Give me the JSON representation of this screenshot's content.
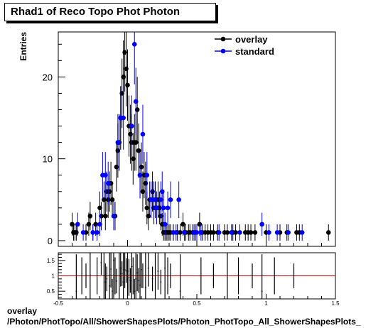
{
  "title": "Rhad1 of Reco Topo Phot Photon",
  "footer": {
    "line1": "overlay",
    "line2": "/Photon/PhotTopo/All/ShowerShapesPlots/Photon_PhotTopo_All_ShowerShapesPlots_"
  },
  "colors": {
    "overlay": "#000000",
    "standard": "#0000ff",
    "ratio_line": "#cc0000"
  },
  "chart_data": [
    {
      "type": "scatter",
      "ylabel": "Entries",
      "xlim": [
        -0.5,
        1.5
      ],
      "ylim": [
        -0.7,
        25.5
      ],
      "yticks": [
        0,
        10,
        20
      ],
      "legend_position": "top-right",
      "series": [
        {
          "name": "overlay",
          "x": [
            -0.4,
            -0.39,
            -0.38,
            -0.37,
            -0.3,
            -0.28,
            -0.27,
            -0.25,
            -0.23,
            -0.2,
            -0.19,
            -0.17,
            -0.16,
            -0.15,
            -0.14,
            -0.13,
            -0.12,
            -0.11,
            -0.09,
            -0.08,
            -0.07,
            -0.06,
            -0.05,
            -0.04,
            -0.03,
            -0.02,
            -0.01,
            0.0,
            0.01,
            0.02,
            0.03,
            0.04,
            0.05,
            0.06,
            0.07,
            0.08,
            0.09,
            0.1,
            0.11,
            0.12,
            0.13,
            0.14,
            0.15,
            0.16,
            0.18,
            0.19,
            0.2,
            0.21,
            0.22,
            0.23,
            0.24,
            0.25,
            0.26,
            0.27,
            0.28,
            0.29,
            0.3,
            0.31,
            0.33,
            0.36,
            0.38,
            0.4,
            0.42,
            0.44,
            0.45,
            0.47,
            0.49,
            0.52,
            0.54,
            0.56,
            0.58,
            0.6,
            0.62,
            0.65,
            0.7,
            0.72,
            0.76,
            0.78,
            0.85,
            0.87,
            0.89,
            0.92,
            1.0,
            1.1,
            1.15,
            1.22,
            1.24,
            1.45
          ],
          "y": [
            2,
            1,
            1,
            1,
            1,
            2,
            3,
            1,
            2,
            4,
            3,
            5,
            3,
            6,
            5,
            6,
            7,
            5,
            3,
            9,
            11,
            12,
            15,
            18,
            20,
            23,
            21,
            19,
            14,
            13,
            12,
            10,
            12,
            12,
            16,
            11,
            8,
            9,
            6,
            8,
            7,
            4,
            3,
            5,
            6,
            4,
            5,
            4,
            5,
            4,
            3,
            2,
            1,
            1,
            1,
            1,
            1,
            1,
            1,
            1,
            1,
            2,
            1,
            1,
            1,
            1,
            1,
            2,
            1,
            1,
            1,
            1,
            1,
            1,
            1,
            1,
            1,
            1,
            1,
            1,
            1,
            1,
            1,
            1,
            1,
            1,
            1,
            1
          ]
        },
        {
          "name": "standard",
          "x": [
            -0.36,
            -0.32,
            -0.25,
            -0.22,
            -0.2,
            -0.18,
            -0.16,
            -0.14,
            -0.1,
            -0.07,
            -0.05,
            -0.03,
            0.03,
            0.05,
            0.06,
            0.09,
            0.11,
            0.14,
            0.17,
            0.19,
            0.21,
            0.24,
            0.25,
            0.26,
            0.27,
            0.29,
            0.31,
            0.33,
            0.35,
            0.37,
            0.41,
            0.48,
            0.5,
            0.53,
            0.66,
            0.75,
            0.81,
            0.97,
            1.02,
            1.08,
            1.16,
            1.26
          ],
          "y": [
            2,
            1,
            1,
            1,
            2,
            8,
            8,
            7,
            3,
            12,
            15,
            15,
            14,
            24,
            17,
            8,
            13,
            8,
            5,
            5,
            4,
            5,
            6,
            4,
            2,
            4,
            5,
            1,
            1,
            5,
            1,
            1,
            1,
            1,
            1,
            1,
            1,
            2,
            1,
            1,
            1,
            1
          ]
        }
      ]
    },
    {
      "type": "scatter",
      "xlim": [
        -0.5,
        1.5
      ],
      "ylim": [
        0.25,
        1.75
      ],
      "xticks": [
        -0.5,
        0,
        0.5,
        1,
        1.5
      ],
      "xtick_labels": [
        "-0.5",
        "0",
        "0.5",
        "1",
        "1.5"
      ],
      "yticks": [
        0.5,
        1,
        1.5
      ],
      "reference_line": 1,
      "series": [
        {
          "name": "",
          "x": [
            -0.37,
            -0.33,
            -0.3,
            -0.27,
            -0.22,
            -0.19,
            -0.17,
            -0.16,
            -0.15,
            -0.13,
            -0.12,
            -0.11,
            -0.1,
            -0.09,
            -0.08,
            -0.06,
            -0.05,
            -0.04,
            -0.03,
            -0.02,
            -0.01,
            0.0,
            0.01,
            0.02,
            0.03,
            0.04,
            0.05,
            0.06,
            0.07,
            0.08,
            0.09,
            0.1,
            0.11,
            0.13,
            0.15,
            0.18,
            0.2,
            0.22,
            0.24,
            0.27,
            0.29,
            0.31,
            0.38,
            0.53,
            0.62,
            0.72,
            0.8,
            0.9,
            0.97,
            1.06,
            1.2
          ],
          "y": [
            0.5,
            1.0,
            1.0,
            1.0,
            1.0,
            1.43,
            1.0,
            0.8,
            0.9,
            0.67,
            1.22,
            0.5,
            1.5,
            1.0,
            0.83,
            1.0,
            1.25,
            1.07,
            0.8,
            1.2,
            1.17,
            1.15,
            0.95,
            0.85,
            1.3,
            1.0,
            0.5,
            0.9,
            1.1,
            0.85,
            0.7,
            1.2,
            1.0,
            0.63,
            1.25,
            0.9,
            1.0,
            1.15,
            0.8,
            1.25,
            1.0,
            1.0,
            0.5,
            1.0,
            1.0,
            1.0,
            1.0,
            1.0,
            0.5,
            1.0,
            1.0
          ]
        }
      ]
    }
  ]
}
